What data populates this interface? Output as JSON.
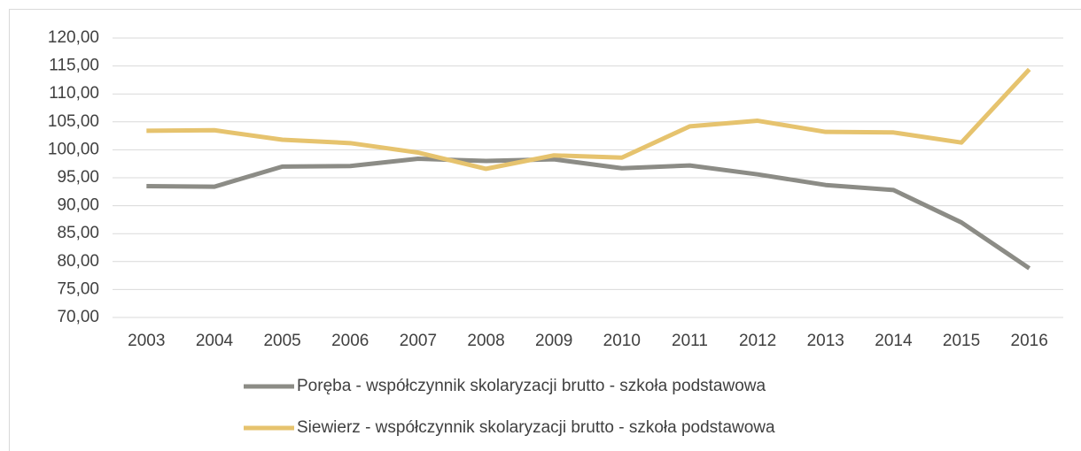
{
  "chart_data": {
    "type": "line",
    "categories": [
      "2003",
      "2004",
      "2005",
      "2006",
      "2007",
      "2008",
      "2009",
      "2010",
      "2011",
      "2012",
      "2013",
      "2014",
      "2015",
      "2016"
    ],
    "series": [
      {
        "name": "Poręba - współczynnik skolaryzacji brutto - szkoła podstawowa",
        "color": "#8c8c86",
        "values": [
          93.5,
          93.4,
          97.0,
          97.1,
          98.4,
          98.0,
          98.3,
          96.7,
          97.2,
          95.6,
          93.7,
          92.8,
          87.0,
          78.8
        ]
      },
      {
        "name": "Siewierz - współczynnik skolaryzacji brutto - szkoła podstawowa",
        "color": "#e6c36e",
        "values": [
          103.4,
          103.5,
          101.8,
          101.2,
          99.5,
          96.6,
          99.0,
          98.6,
          104.2,
          105.2,
          103.2,
          103.1,
          101.3,
          114.4
        ]
      }
    ],
    "ylim": [
      70,
      120
    ],
    "yticks": [
      {
        "value": 70,
        "label": "70,00"
      },
      {
        "value": 75,
        "label": "75,00"
      },
      {
        "value": 80,
        "label": "80,00"
      },
      {
        "value": 85,
        "label": "85,00"
      },
      {
        "value": 90,
        "label": "90,00"
      },
      {
        "value": 95,
        "label": "95,00"
      },
      {
        "value": 100,
        "label": "100,00"
      },
      {
        "value": 105,
        "label": "105,00"
      },
      {
        "value": 110,
        "label": "110,00"
      },
      {
        "value": 115,
        "label": "115,00"
      },
      {
        "value": 120,
        "label": "120,00"
      }
    ],
    "grid": true,
    "legend": "bottom"
  }
}
